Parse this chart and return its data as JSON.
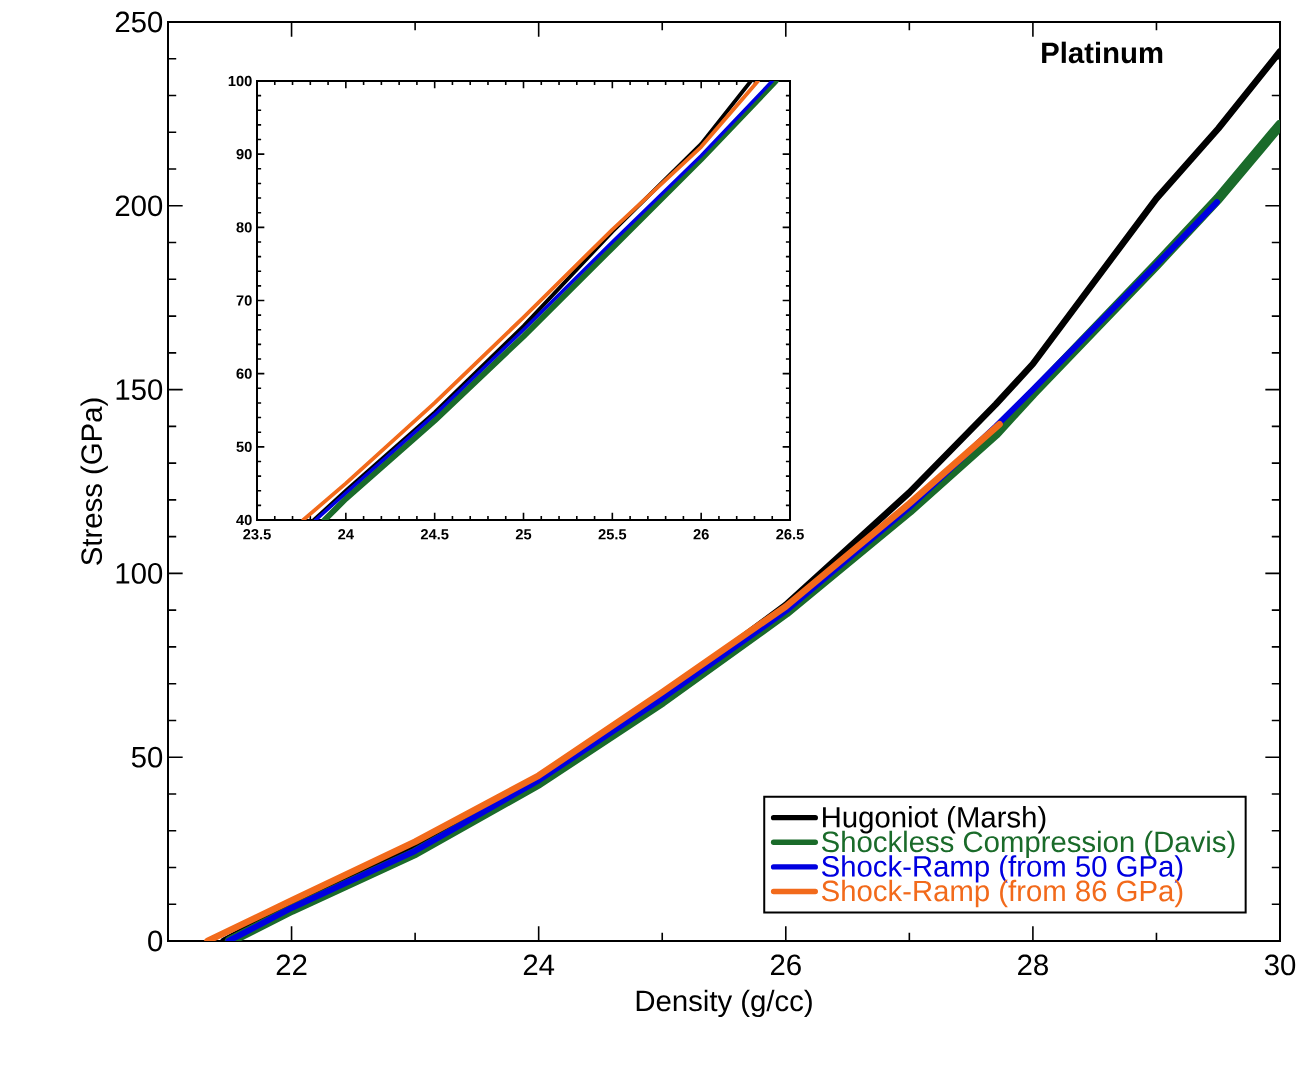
{
  "chart_data": [
    {
      "type": "line",
      "title": "Platinum",
      "xlabel": "Density (g/cc)",
      "ylabel": "Stress (GPa)",
      "xlim": [
        21,
        30
      ],
      "ylim": [
        0,
        250
      ],
      "xticks": [
        22,
        24,
        26,
        28,
        30
      ],
      "yticks": [
        0,
        50,
        100,
        150,
        200,
        250
      ],
      "legend": "bottom right",
      "series": [
        {
          "name": "Hugoniot (Marsh)",
          "color": "#000000",
          "x": [
            21.45,
            22,
            23,
            24,
            25,
            26,
            27,
            27.7,
            28,
            29,
            29.5,
            30
          ],
          "values": [
            0,
            10,
            26,
            44,
            66.5,
            91.4,
            122,
            146,
            157,
            202,
            221,
            242
          ]
        },
        {
          "name": "Shockless Compression (Davis)",
          "color": "#1a6b2a",
          "x": [
            21.5,
            22,
            23,
            24,
            25,
            26,
            27,
            27.7,
            28,
            29,
            29.5,
            30
          ],
          "values": [
            0,
            8.5,
            24,
            42.9,
            65.1,
            89.3,
            117,
            138,
            149,
            184,
            202,
            222
          ]
        },
        {
          "name": "Shock-Ramp (from 50 GPa)",
          "color": "#0000e0",
          "x": [
            21.49,
            22,
            23,
            24,
            25,
            26,
            27,
            27.7,
            28,
            29,
            29.49
          ],
          "values": [
            0,
            9,
            24.5,
            43.7,
            66,
            89.8,
            118,
            140,
            150,
            184,
            201
          ]
        },
        {
          "name": "Shock-Ramp (from 86 GPa)",
          "color": "#f26a1b",
          "x": [
            21.32,
            22,
            23,
            24,
            25,
            26,
            27,
            27.73
          ],
          "values": [
            0,
            11,
            27,
            45,
            67.7,
            91,
            119,
            140.6
          ]
        }
      ]
    },
    {
      "type": "line",
      "xlim": [
        23.5,
        26.5
      ],
      "ylim": [
        40,
        100
      ],
      "xticks": [
        23.5,
        24,
        24.5,
        25,
        25.5,
        26,
        26.5
      ],
      "yticks": [
        40,
        50,
        60,
        70,
        80,
        90,
        100
      ],
      "series": [
        {
          "color": "#000000",
          "x": [
            23.82,
            24,
            24.5,
            25,
            25.5,
            26,
            26.28
          ],
          "values": [
            40,
            44,
            54.7,
            66.5,
            79.4,
            91.4,
            100
          ]
        },
        {
          "color": "#1a6b2a",
          "x": [
            23.88,
            24,
            24.5,
            25,
            25.5,
            26,
            26.42
          ],
          "values": [
            40,
            42.9,
            53.6,
            65.1,
            77.2,
            89.3,
            100
          ]
        },
        {
          "color": "#0000e0",
          "x": [
            23.83,
            24,
            24.5,
            25,
            25.5,
            26,
            26.4
          ],
          "values": [
            40,
            43.7,
            54.4,
            66,
            78,
            89.8,
            100
          ]
        },
        {
          "color": "#f26a1b",
          "x": [
            23.76,
            24,
            24.5,
            25,
            25.5,
            26,
            26.32
          ],
          "values": [
            40,
            45,
            56,
            67.7,
            79.7,
            91,
            100
          ]
        }
      ]
    }
  ]
}
